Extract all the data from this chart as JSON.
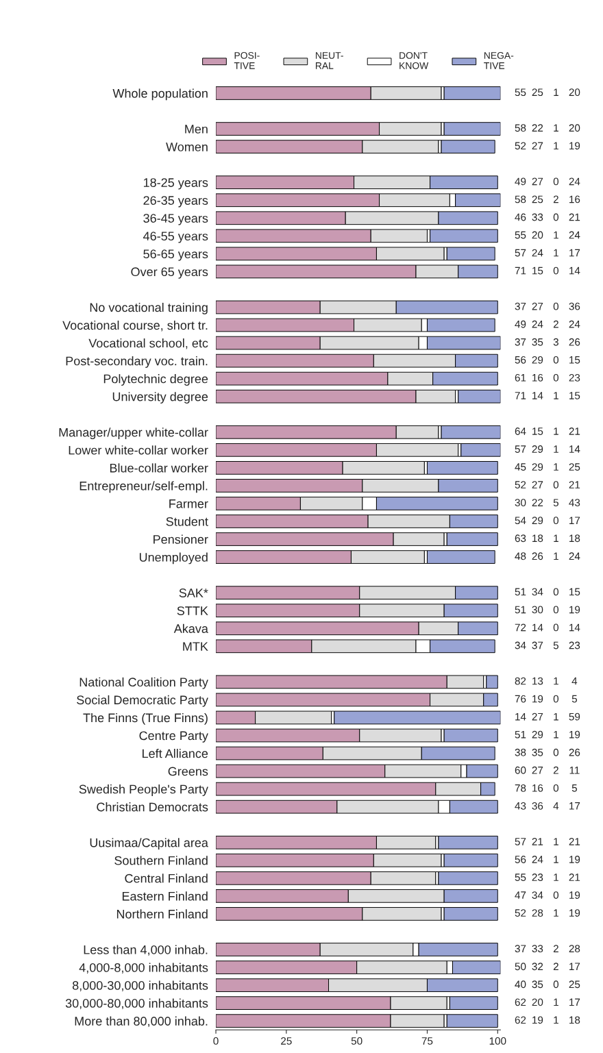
{
  "chart_data": {
    "type": "bar",
    "orientation": "horizontal",
    "stacked": true,
    "data_labels": true,
    "legend": "top",
    "xlim": [
      0,
      101
    ],
    "xticks": [
      0,
      25,
      50,
      75,
      100
    ],
    "categories": [
      "Whole population",
      null,
      "Men",
      "Women",
      null,
      "18-25 years",
      "26-35 years",
      "36-45 years",
      "46-55 years",
      "56-65 years",
      "Over 65 years",
      null,
      "No vocational training",
      "Vocational course, short tr.",
      "Vocational school, etc",
      "Post-secondary voc. train.",
      "Polytechnic degree",
      "University degree",
      null,
      "Manager/upper white-collar",
      "Lower white-collar worker",
      "Blue-collar worker",
      "Entrepreneur/self-empl.",
      "Farmer",
      "Student",
      "Pensioner",
      "Unemployed",
      null,
      "SAK*",
      "STTK",
      "Akava",
      "MTK",
      null,
      "National Coalition Party",
      "Social Democratic Party",
      "The Finns (True Finns)",
      "Centre Party",
      "Left Alliance",
      "Greens",
      "Swedish People's Party",
      "Christian Democrats",
      null,
      "Uusimaa/Capital area",
      "Southern Finland",
      "Central Finland",
      "Eastern Finland",
      "Northern Finland",
      null,
      "Less than 4,000 inhab.",
      "4,000-8,000 inhabitants",
      "8,000-30,000 inhabitants",
      "30,000-80,000 inhabitants",
      "More than 80,000 inhab."
    ],
    "series": [
      {
        "name": "POSI-\nTIVE",
        "color": "#c99ab2",
        "values": [
          55,
          null,
          58,
          52,
          null,
          49,
          58,
          46,
          55,
          57,
          71,
          null,
          37,
          49,
          37,
          56,
          61,
          71,
          null,
          64,
          57,
          45,
          52,
          30,
          54,
          63,
          48,
          null,
          51,
          51,
          72,
          34,
          null,
          82,
          76,
          14,
          51,
          38,
          60,
          78,
          43,
          null,
          57,
          56,
          55,
          47,
          52,
          null,
          37,
          50,
          40,
          62,
          62
        ]
      },
      {
        "name": "NEUT-\nRAL",
        "color": "#dcdcdc",
        "values": [
          25,
          null,
          22,
          27,
          null,
          27,
          25,
          33,
          20,
          24,
          15,
          null,
          27,
          24,
          35,
          29,
          16,
          14,
          null,
          15,
          29,
          29,
          27,
          22,
          29,
          18,
          26,
          null,
          34,
          30,
          14,
          37,
          null,
          13,
          19,
          27,
          29,
          35,
          27,
          16,
          36,
          null,
          21,
          24,
          23,
          34,
          28,
          null,
          33,
          32,
          35,
          20,
          19
        ]
      },
      {
        "name": "DON'T\nKNOW",
        "color": "#ffffff",
        "values": [
          1,
          null,
          1,
          1,
          null,
          0,
          2,
          0,
          1,
          1,
          0,
          null,
          0,
          2,
          3,
          0,
          0,
          1,
          null,
          1,
          1,
          1,
          0,
          5,
          0,
          1,
          1,
          null,
          0,
          0,
          0,
          5,
          null,
          1,
          0,
          1,
          1,
          0,
          2,
          0,
          4,
          null,
          1,
          1,
          1,
          0,
          1,
          null,
          2,
          2,
          0,
          1,
          1
        ]
      },
      {
        "name": "NEGA-\nTIVE",
        "color": "#98a3d4",
        "values": [
          20,
          null,
          20,
          19,
          null,
          24,
          16,
          21,
          24,
          17,
          14,
          null,
          36,
          24,
          26,
          15,
          23,
          15,
          null,
          21,
          14,
          25,
          21,
          43,
          17,
          18,
          24,
          null,
          15,
          19,
          14,
          23,
          null,
          4,
          5,
          59,
          19,
          26,
          11,
          5,
          17,
          null,
          21,
          19,
          21,
          19,
          19,
          null,
          28,
          17,
          25,
          17,
          18
        ]
      }
    ]
  }
}
